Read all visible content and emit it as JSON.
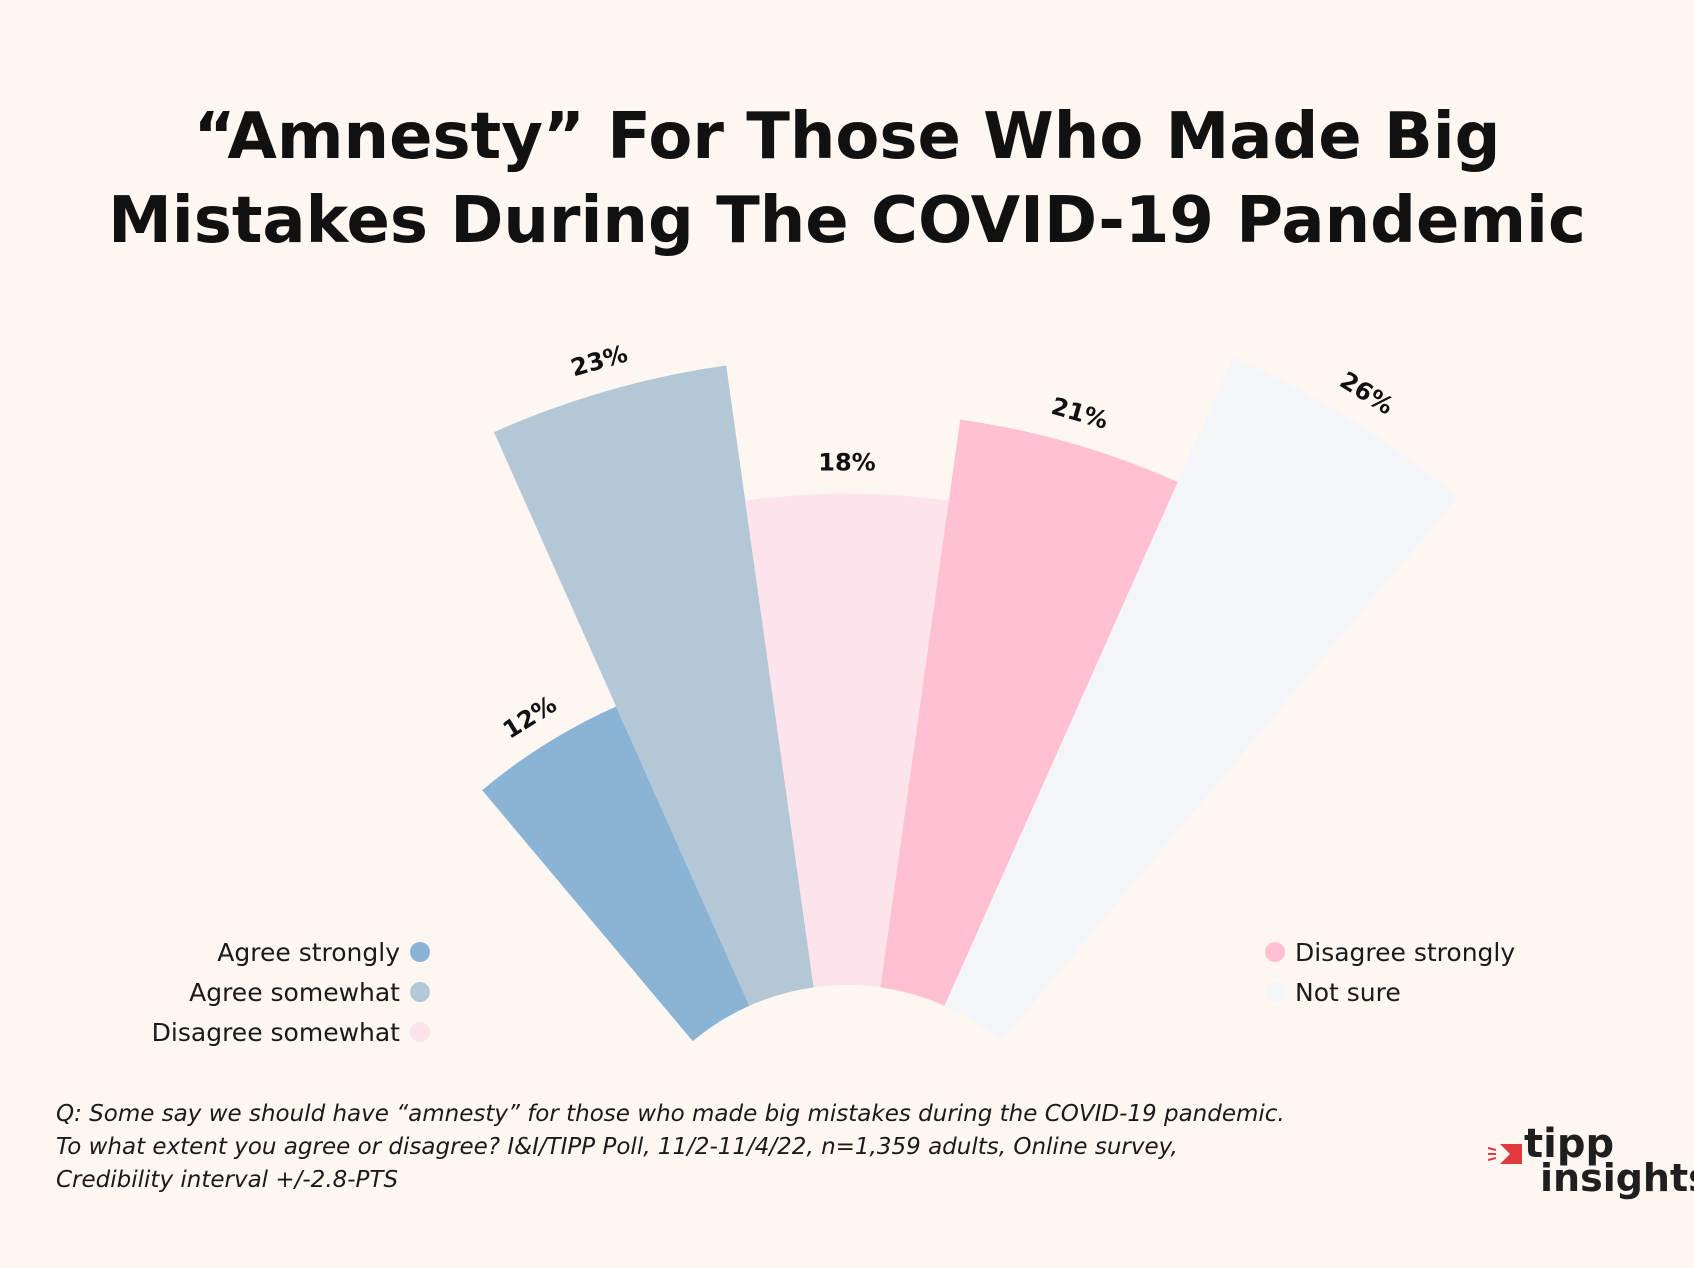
{
  "title_line1": "“Amnesty” For Those Who Made Big",
  "title_line2": "Mistakes During The COVID-19 Pandemic",
  "chart_data": {
    "type": "polar-bar",
    "categories": [
      "Agree strongly",
      "Agree somewhat",
      "Disagree somewhat",
      "Disagree strongly",
      "Not sure"
    ],
    "values": [
      12,
      23,
      18,
      21,
      26
    ],
    "labels": [
      "12%",
      "23%",
      "18%",
      "21%",
      "26%"
    ],
    "colors": [
      "#8ab4d5",
      "#b4c7d7",
      "#fde4ec",
      "#ffc1d2",
      "#f3f5f9"
    ],
    "legend": {
      "left": [
        "Agree strongly",
        "Agree somewhat",
        "Disagree somewhat"
      ],
      "right": [
        "Disagree strongly",
        "Not sure"
      ]
    }
  },
  "footnote": {
    "line1": "Q: Some say we should have “amnesty” for those who made big mistakes during the COVID-19 pandemic.",
    "line2": "To what extent you agree or disagree? I&I/TIPP Poll, 11/2-11/4/22, n=1,359 adults, Online survey,",
    "line3": "Credibility interval +/-2.8-PTS"
  },
  "logo": {
    "line1": "tipp",
    "line2": "insights",
    "accent": "#e0393e"
  }
}
